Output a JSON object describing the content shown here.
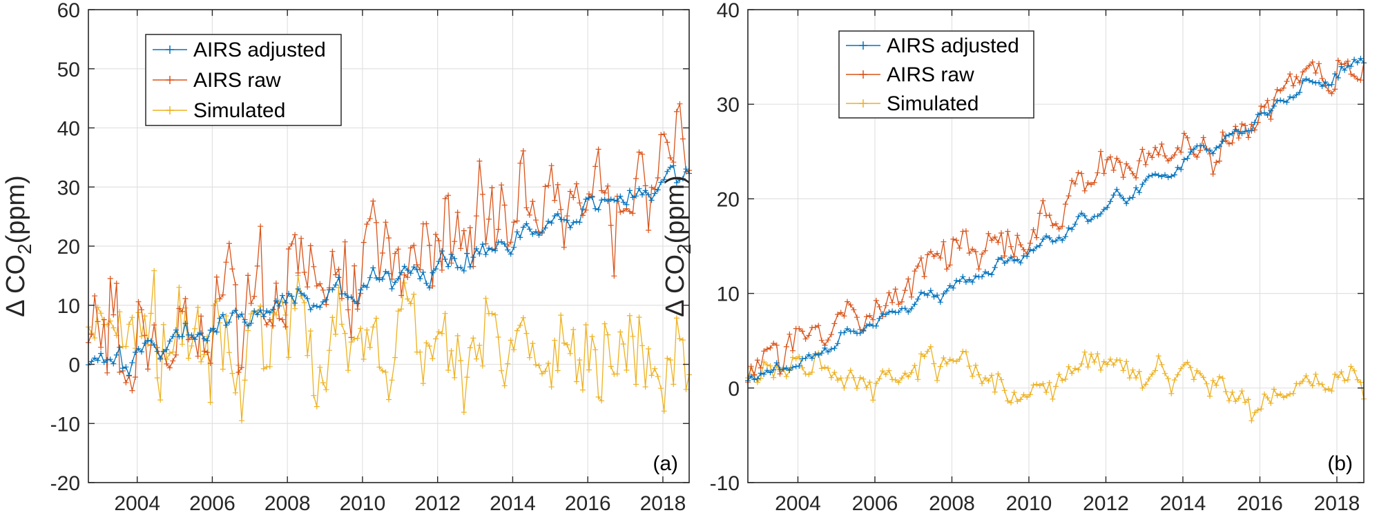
{
  "chart_data": [
    {
      "type": "line",
      "panel_label": "(a)",
      "ylabel_symbol": "Δ CO",
      "ylabel_subscript": "2",
      "ylabel_unit": "(ppm)",
      "xlim": [
        2002.7,
        2018.7
      ],
      "ylim": [
        -20,
        60
      ],
      "xticks": [
        2004,
        2006,
        2008,
        2010,
        2012,
        2014,
        2016,
        2018
      ],
      "yticks": [
        -20,
        -10,
        0,
        10,
        20,
        30,
        40,
        50,
        60
      ],
      "grid": true,
      "legend": "top-left",
      "series": [
        {
          "name": "AIRS adjusted",
          "color": "#0072BD",
          "trend": [
            [
              2002.7,
              1
            ],
            [
              2004,
              2
            ],
            [
              2006,
              6
            ],
            [
              2008,
              10.5
            ],
            [
              2010,
              13
            ],
            [
              2012,
              17
            ],
            [
              2014,
              21
            ],
            [
              2016,
              27
            ],
            [
              2018.7,
              32
            ]
          ]
        },
        {
          "name": "AIRS raw",
          "color": "#D95319",
          "trend": [
            [
              2002.7,
              4
            ],
            [
              2004,
              4
            ],
            [
              2006,
              9
            ],
            [
              2008,
              13.5
            ],
            [
              2010,
              18
            ],
            [
              2012,
              22.5
            ],
            [
              2014,
              25.5
            ],
            [
              2016,
              30
            ],
            [
              2018.7,
              34
            ]
          ]
        },
        {
          "name": "Simulated",
          "color": "#EDB120",
          "trend": [
            [
              2002.7,
              3
            ],
            [
              2004,
              5
            ],
            [
              2006,
              3
            ],
            [
              2008,
              3
            ],
            [
              2010,
              3
            ],
            [
              2012,
              3
            ],
            [
              2014,
              2
            ],
            [
              2016,
              1
            ],
            [
              2018.7,
              1
            ]
          ]
        }
      ]
    },
    {
      "type": "line",
      "panel_label": "(b)",
      "ylabel_symbol": "Δ CO",
      "ylabel_subscript": "2",
      "ylabel_unit": "(ppm)",
      "xlim": [
        2002.7,
        2018.7
      ],
      "ylim": [
        -10,
        40
      ],
      "xticks": [
        2004,
        2006,
        2008,
        2010,
        2012,
        2014,
        2016,
        2018
      ],
      "yticks": [
        -10,
        0,
        10,
        20,
        30,
        40
      ],
      "grid": true,
      "legend": "top-left",
      "series": [
        {
          "name": "AIRS adjusted",
          "color": "#0072BD",
          "trend": [
            [
              2002.7,
              1
            ],
            [
              2004,
              2.5
            ],
            [
              2006,
              7
            ],
            [
              2008,
              11
            ],
            [
              2010,
              14.5
            ],
            [
              2012,
              19
            ],
            [
              2014,
              24
            ],
            [
              2016,
              28.5
            ],
            [
              2017,
              32
            ],
            [
              2018,
              33
            ],
            [
              2018.7,
              35
            ]
          ]
        },
        {
          "name": "AIRS raw",
          "color": "#D95319",
          "trend": [
            [
              2002.7,
              3
            ],
            [
              2004,
              5
            ],
            [
              2006,
              9
            ],
            [
              2008,
              14
            ],
            [
              2010,
              15.5
            ],
            [
              2011,
              21
            ],
            [
              2012,
              23
            ],
            [
              2014,
              24.5
            ],
            [
              2016,
              28.5
            ],
            [
              2017,
              33
            ],
            [
              2018,
              33
            ],
            [
              2018.7,
              36
            ]
          ]
        },
        {
          "name": "Simulated",
          "color": "#EDB120",
          "trend": [
            [
              2002.7,
              1.5
            ],
            [
              2004,
              2.5
            ],
            [
              2006,
              0.5
            ],
            [
              2008,
              2.5
            ],
            [
              2009,
              1.5
            ],
            [
              2010,
              -1.5
            ],
            [
              2011,
              2
            ],
            [
              2012,
              4
            ],
            [
              2013,
              0.5
            ],
            [
              2014,
              1.5
            ],
            [
              2015,
              0.5
            ],
            [
              2016,
              -2
            ],
            [
              2017,
              0.5
            ],
            [
              2018.7,
              1.5
            ]
          ]
        }
      ]
    }
  ]
}
